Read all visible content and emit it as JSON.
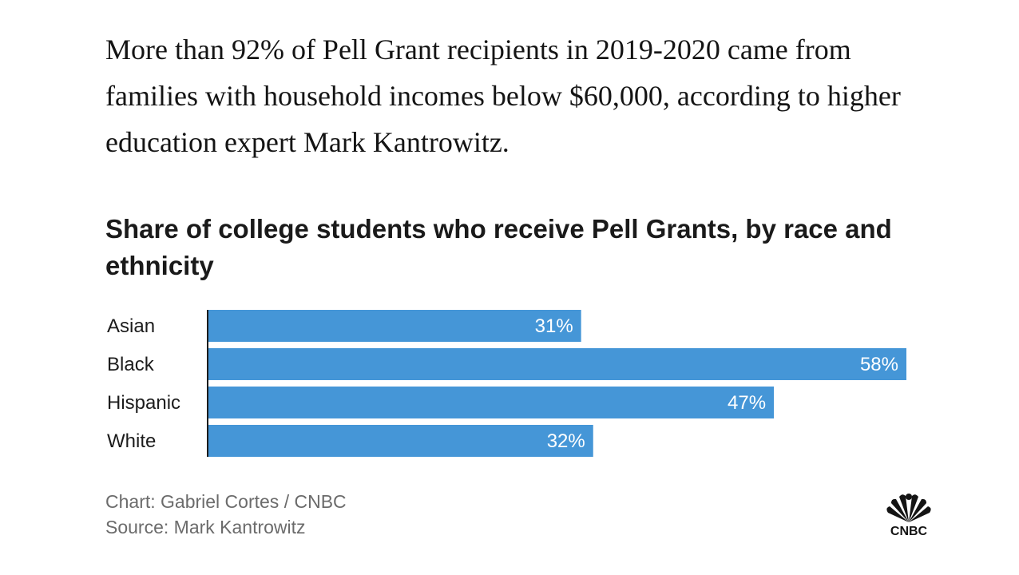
{
  "intro_text": "More than 92% of Pell Grant recipients in 2019-2020 came from families with household incomes below $60,000, according to higher education expert Mark Kantrowitz.",
  "chart_data": {
    "type": "bar",
    "orientation": "horizontal",
    "title": "Share of college students who receive Pell Grants, by race and ethnicity",
    "categories": [
      "Asian",
      "Black",
      "Hispanic",
      "White"
    ],
    "values": [
      31,
      58,
      47,
      32
    ],
    "value_labels": [
      "31%",
      "58%",
      "47%",
      "32%"
    ],
    "xlabel": "",
    "ylabel": "",
    "xlim": [
      0,
      58
    ],
    "grid": false,
    "legend": "none",
    "bar_color": "#4596d7"
  },
  "credits": {
    "chart": "Chart: Gabriel Cortes / CNBC",
    "source": "Source: Mark Kantrowitz"
  },
  "logo": {
    "icon": "cnbc-peacock-logo",
    "text": "CNBC",
    "feather_colors": [
      "#141414"
    ]
  }
}
